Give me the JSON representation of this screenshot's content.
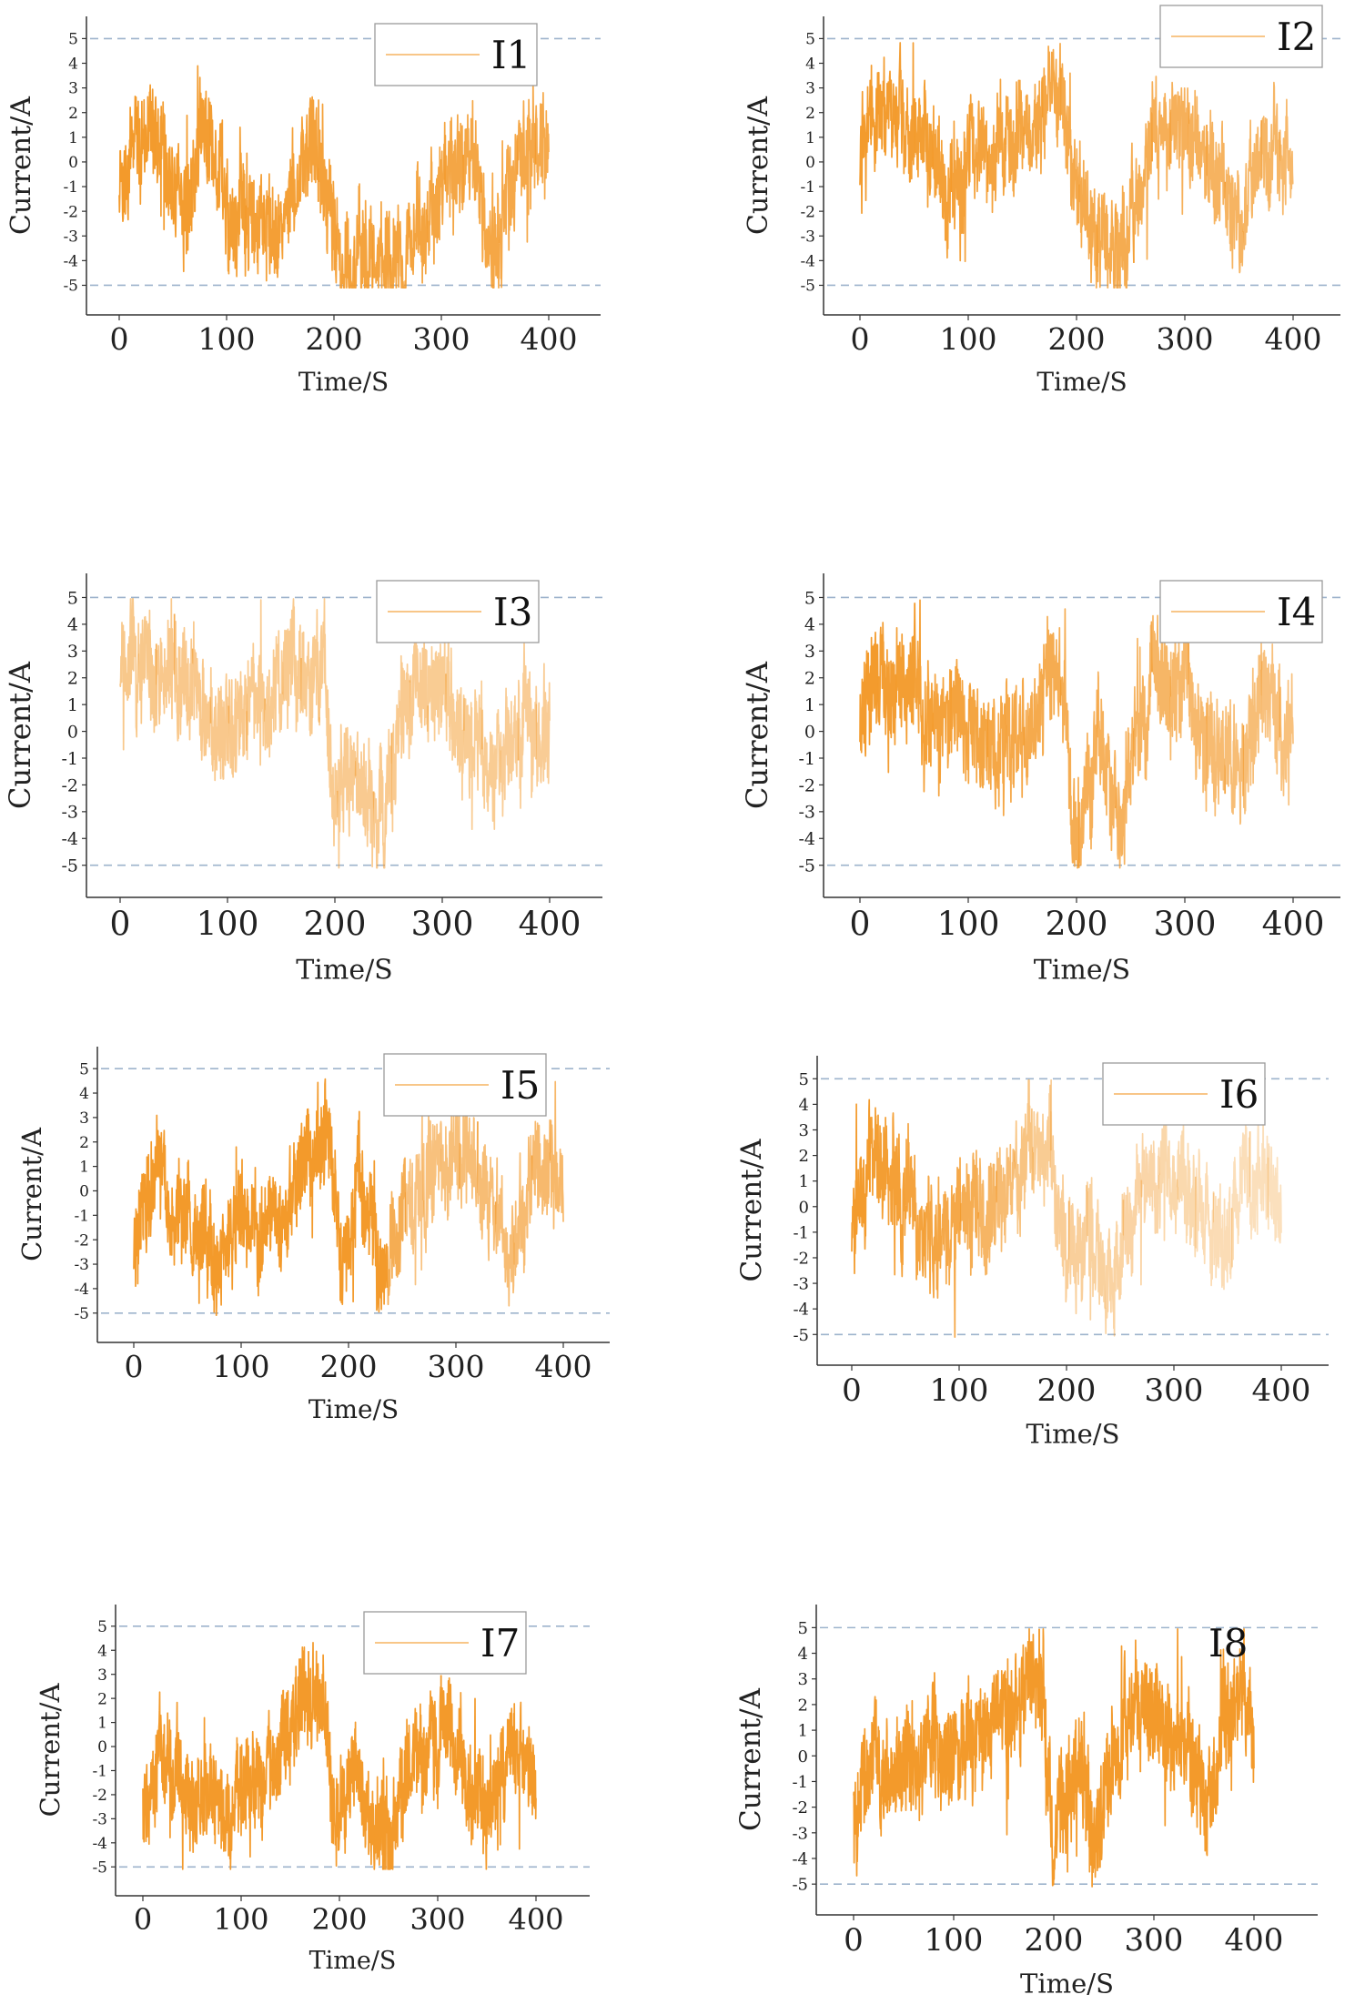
{
  "figure": {
    "line_color": "#F39A2B",
    "ref_line_color": "#9DB3CC",
    "axis_color": "#333333",
    "legend_border_color": "#9A9A9A"
  },
  "chart_data": [
    {
      "type": "line",
      "series": [
        {
          "name": "I1",
          "seed": 11,
          "fade": [
            [
              0,
              1.0
            ],
            [
              400,
              0.85
            ]
          ],
          "keys": [
            [
              0,
              -1
            ],
            [
              20,
              1.5
            ],
            [
              40,
              1.0
            ],
            [
              60,
              -2.0
            ],
            [
              80,
              1.5
            ],
            [
              100,
              -2.5
            ],
            [
              120,
              -2.0
            ],
            [
              150,
              -2.5
            ],
            [
              175,
              1.5
            ],
            [
              195,
              -1.0
            ],
            [
              210,
              -4.0
            ],
            [
              240,
              -3.5
            ],
            [
              260,
              -4.0
            ],
            [
              300,
              -1.0
            ],
            [
              330,
              -0.5
            ],
            [
              350,
              -4.0
            ],
            [
              370,
              0.5
            ],
            [
              400,
              0.5
            ]
          ]
        }
      ],
      "legend": "I1",
      "legend_position": "top-right",
      "xlabel": "Time/S",
      "ylabel": "Current/A",
      "xlim": [
        -15,
        440
      ],
      "ylim": [
        -6.2,
        5.9
      ],
      "xticks": [
        0,
        100,
        200,
        300,
        400
      ],
      "yticks": [
        5,
        4,
        3,
        2,
        1,
        0,
        -1,
        -2,
        -3,
        -4,
        -5
      ],
      "reference_lines": [
        5,
        -5
      ]
    },
    {
      "type": "line",
      "series": [
        {
          "name": "I2",
          "seed": 22,
          "fade": [
            [
              0,
              1.0
            ],
            [
              400,
              0.7
            ]
          ],
          "keys": [
            [
              0,
              0.5
            ],
            [
              20,
              2.5
            ],
            [
              50,
              1.5
            ],
            [
              80,
              -1.0
            ],
            [
              110,
              0.5
            ],
            [
              140,
              0.5
            ],
            [
              165,
              2.0
            ],
            [
              185,
              3.0
            ],
            [
              200,
              -2.0
            ],
            [
              220,
              -3.5
            ],
            [
              240,
              -4.0
            ],
            [
              270,
              1.0
            ],
            [
              300,
              1.5
            ],
            [
              320,
              -0.5
            ],
            [
              350,
              -2.5
            ],
            [
              370,
              0.5
            ],
            [
              400,
              0.0
            ]
          ]
        }
      ],
      "legend": "I2",
      "legend_position": "top-right",
      "xlabel": "Time/S",
      "ylabel": "Current/A",
      "xlim": [
        -15,
        440
      ],
      "ylim": [
        -6.2,
        5.9
      ],
      "xticks": [
        0,
        100,
        200,
        300,
        400
      ],
      "yticks": [
        5,
        4,
        3,
        2,
        1,
        0,
        -1,
        -2,
        -3,
        -4,
        -5
      ],
      "reference_lines": [
        5,
        -5
      ]
    },
    {
      "type": "line",
      "series": [
        {
          "name": "I3",
          "seed": 33,
          "fade": [
            [
              0,
              0.55
            ],
            [
              400,
              0.5
            ]
          ],
          "keys": [
            [
              0,
              2.5
            ],
            [
              40,
              2.0
            ],
            [
              70,
              1.5
            ],
            [
              100,
              0.0
            ],
            [
              130,
              1.0
            ],
            [
              160,
              2.0
            ],
            [
              190,
              2.5
            ],
            [
              200,
              -3.0
            ],
            [
              215,
              -1.0
            ],
            [
              235,
              -3.0
            ],
            [
              245,
              -3.5
            ],
            [
              270,
              1.5
            ],
            [
              300,
              1.5
            ],
            [
              320,
              0.0
            ],
            [
              350,
              -1.0
            ],
            [
              370,
              1.0
            ],
            [
              400,
              -0.5
            ]
          ]
        }
      ],
      "legend": "I3",
      "legend_position": "top-right",
      "xlabel": "Time/S",
      "ylabel": "Current/A",
      "xlim": [
        -15,
        440
      ],
      "ylim": [
        -6.2,
        5.9
      ],
      "xticks": [
        0,
        100,
        200,
        300,
        400
      ],
      "yticks": [
        5,
        4,
        3,
        2,
        1,
        0,
        -1,
        -2,
        -3,
        -4,
        -5
      ],
      "reference_lines": [
        5,
        -5
      ]
    },
    {
      "type": "line",
      "series": [
        {
          "name": "I4",
          "seed": 44,
          "fade": [
            [
              0,
              1.0
            ],
            [
              400,
              0.6
            ]
          ],
          "keys": [
            [
              0,
              0.0
            ],
            [
              20,
              2.0
            ],
            [
              50,
              1.5
            ],
            [
              80,
              0.5
            ],
            [
              110,
              -0.5
            ],
            [
              140,
              -0.5
            ],
            [
              165,
              1.5
            ],
            [
              185,
              2.5
            ],
            [
              195,
              -3.5
            ],
            [
              205,
              -4.0
            ],
            [
              220,
              0.0
            ],
            [
              240,
              -3.0
            ],
            [
              270,
              1.5
            ],
            [
              300,
              1.5
            ],
            [
              320,
              0.5
            ],
            [
              350,
              -2.0
            ],
            [
              370,
              1.0
            ],
            [
              400,
              0.0
            ]
          ]
        }
      ],
      "legend": "I4",
      "legend_position": "top-right",
      "xlabel": "Time/S",
      "ylabel": "Current/A",
      "xlim": [
        -15,
        440
      ],
      "ylim": [
        -6.2,
        5.9
      ],
      "xticks": [
        0,
        100,
        200,
        300,
        400
      ],
      "yticks": [
        5,
        4,
        3,
        2,
        1,
        0,
        -1,
        -2,
        -3,
        -4,
        -5
      ],
      "reference_lines": [
        5,
        -5
      ]
    },
    {
      "type": "line",
      "series": [
        {
          "name": "I5",
          "seed": 55,
          "fade": [
            [
              0,
              1.0
            ],
            [
              230,
              1.0
            ],
            [
              260,
              0.6
            ],
            [
              400,
              0.7
            ]
          ],
          "keys": [
            [
              0,
              -2.0
            ],
            [
              20,
              0.5
            ],
            [
              50,
              -1.5
            ],
            [
              80,
              -2.5
            ],
            [
              100,
              -1.5
            ],
            [
              140,
              -1.0
            ],
            [
              165,
              1.5
            ],
            [
              180,
              2.0
            ],
            [
              195,
              -3.5
            ],
            [
              210,
              0.5
            ],
            [
              230,
              -3.0
            ],
            [
              260,
              -0.5
            ],
            [
              290,
              1.5
            ],
            [
              320,
              1.0
            ],
            [
              350,
              -2.5
            ],
            [
              370,
              1.0
            ],
            [
              400,
              0.0
            ]
          ]
        }
      ],
      "legend": "I5",
      "legend_position": "top-right",
      "xlabel": "Time/S",
      "ylabel": "Current/A",
      "xlim": [
        -15,
        440
      ],
      "ylim": [
        -6.2,
        5.9
      ],
      "xticks": [
        0,
        100,
        200,
        300,
        400
      ],
      "yticks": [
        5,
        4,
        3,
        2,
        1,
        0,
        -1,
        -2,
        -3,
        -4,
        -5
      ],
      "reference_lines": [
        5,
        -5
      ]
    },
    {
      "type": "line",
      "series": [
        {
          "name": "I6",
          "seed": 66,
          "fade": [
            [
              0,
              1.0
            ],
            [
              100,
              0.85
            ],
            [
              180,
              0.5
            ],
            [
              400,
              0.3
            ]
          ],
          "keys": [
            [
              0,
              0.0
            ],
            [
              20,
              2.0
            ],
            [
              50,
              0.5
            ],
            [
              80,
              -1.5
            ],
            [
              100,
              0.0
            ],
            [
              130,
              0.0
            ],
            [
              165,
              2.0
            ],
            [
              185,
              2.5
            ],
            [
              200,
              -2.0
            ],
            [
              220,
              -1.0
            ],
            [
              240,
              -3.5
            ],
            [
              270,
              1.0
            ],
            [
              300,
              1.0
            ],
            [
              320,
              0.5
            ],
            [
              350,
              -2.0
            ],
            [
              370,
              1.0
            ],
            [
              400,
              0.0
            ]
          ]
        }
      ],
      "legend": "I6",
      "legend_position": "top-right",
      "xlabel": "Time/S",
      "ylabel": "Current/A",
      "xlim": [
        -15,
        440
      ],
      "ylim": [
        -6.2,
        5.9
      ],
      "xticks": [
        0,
        100,
        200,
        300,
        400
      ],
      "yticks": [
        5,
        4,
        3,
        2,
        1,
        0,
        -1,
        -2,
        -3,
        -4,
        -5
      ],
      "reference_lines": [
        5,
        -5
      ]
    },
    {
      "type": "line",
      "series": [
        {
          "name": "I7",
          "seed": 77,
          "fade": [
            [
              0,
              1.0
            ],
            [
              400,
              1.0
            ]
          ],
          "keys": [
            [
              0,
              -3.0
            ],
            [
              20,
              0.0
            ],
            [
              50,
              -2.0
            ],
            [
              80,
              -2.5
            ],
            [
              110,
              -1.5
            ],
            [
              140,
              -0.5
            ],
            [
              165,
              2.0
            ],
            [
              185,
              2.0
            ],
            [
              195,
              -3.5
            ],
            [
              215,
              -1.0
            ],
            [
              235,
              -3.5
            ],
            [
              250,
              -4.0
            ],
            [
              280,
              0.0
            ],
            [
              310,
              0.5
            ],
            [
              330,
              -0.5
            ],
            [
              350,
              -4.0
            ],
            [
              370,
              0.0
            ],
            [
              400,
              -1.0
            ]
          ]
        }
      ],
      "legend": "I7",
      "legend_position": "top-right",
      "xlabel": "Time/S",
      "ylabel": "Current/A",
      "xlim": [
        -15,
        440
      ],
      "ylim": [
        -6.2,
        5.9
      ],
      "xticks": [
        0,
        100,
        200,
        300,
        400
      ],
      "yticks": [
        5,
        4,
        3,
        2,
        1,
        0,
        -1,
        -2,
        -3,
        -4,
        -5
      ],
      "reference_lines": [
        5,
        -5
      ]
    },
    {
      "type": "line",
      "series": [
        {
          "name": "I8",
          "seed": 88,
          "fade": [
            [
              0,
              1.0
            ],
            [
              400,
              1.0
            ]
          ],
          "keys": [
            [
              0,
              -2.0
            ],
            [
              20,
              0.5
            ],
            [
              50,
              -1.0
            ],
            [
              80,
              0.5
            ],
            [
              110,
              0.0
            ],
            [
              140,
              1.0
            ],
            [
              165,
              2.0
            ],
            [
              185,
              3.5
            ],
            [
              200,
              -2.5
            ],
            [
              220,
              0.0
            ],
            [
              240,
              -3.5
            ],
            [
              270,
              1.5
            ],
            [
              300,
              1.5
            ],
            [
              330,
              0.5
            ],
            [
              350,
              -2.0
            ],
            [
              370,
              1.5
            ],
            [
              400,
              1.0
            ]
          ]
        }
      ],
      "legend": "I8",
      "legend_position": "top-right",
      "xlabel": "Time/S",
      "ylabel": "Current/A",
      "xlim": [
        -15,
        440
      ],
      "ylim": [
        -6.2,
        5.9
      ],
      "xticks": [
        0,
        100,
        200,
        300,
        400
      ],
      "yticks": [
        5,
        4,
        3,
        2,
        1,
        0,
        -1,
        -2,
        -3,
        -4,
        -5
      ],
      "reference_lines": [
        5,
        -5
      ]
    }
  ]
}
